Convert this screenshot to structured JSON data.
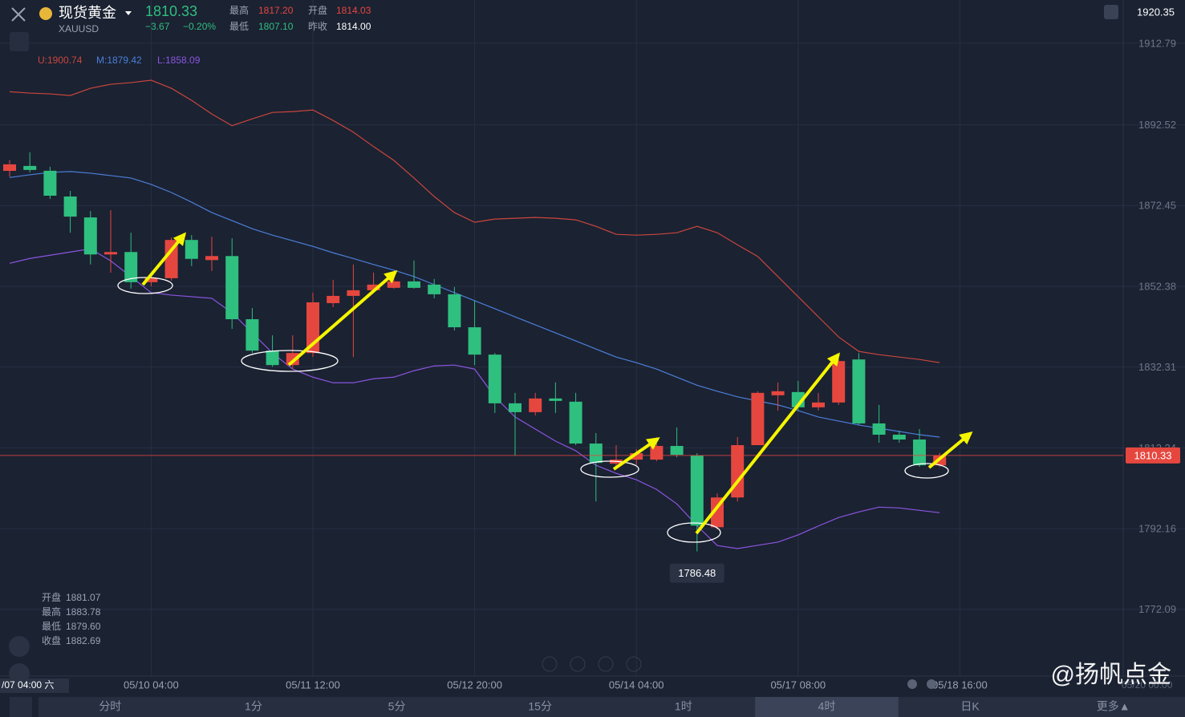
{
  "header": {
    "name": "现货黄金",
    "symbol": "XAUUSD",
    "price": "1810.33",
    "change": "−3.67",
    "change_pct": "−0.20%",
    "stats": [
      {
        "label": "最高",
        "value": "1817.20"
      },
      {
        "label": "开盘",
        "value": "1814.03"
      },
      {
        "label": "最低",
        "value": "1807.10"
      },
      {
        "label": "昨收",
        "value": "1814.00"
      }
    ]
  },
  "ohlc_info": [
    {
      "label": "开盘",
      "value": "1881.07"
    },
    {
      "label": "最高",
      "value": "1883.78"
    },
    {
      "label": "最低",
      "value": "1879.60"
    },
    {
      "label": "收盘",
      "value": "1882.69"
    }
  ],
  "crosshair_time": "/07 04:00 六",
  "faded_label": "05/20 00:00",
  "tabs": [
    "分时",
    "1分",
    "5分",
    "15分",
    "1时",
    "4时",
    "日K",
    "更多▲"
  ],
  "selected_tab": 5,
  "watermark": "@扬帆点金",
  "chart_data": {
    "type": "candlestick",
    "categories": [
      null,
      null,
      null,
      null,
      null,
      null,
      null,
      "05/10 04:00",
      null,
      null,
      null,
      null,
      null,
      null,
      null,
      "05/11 12:00",
      null,
      null,
      null,
      null,
      null,
      null,
      null,
      "05/12 20:00",
      null,
      null,
      null,
      null,
      null,
      null,
      null,
      "05/14 04:00",
      null,
      null,
      null,
      null,
      null,
      null,
      null,
      "05/17 08:00",
      null,
      null,
      null,
      null,
      null,
      null,
      null,
      "05/18 16:00"
    ],
    "open": [
      1881.07,
      1882.3,
      1881.1,
      1874.7,
      1869.5,
      1860.3,
      1860.9,
      1853.4,
      1854.4,
      1863.9,
      1858.9,
      1859.9,
      1844.2,
      1836.4,
      1832.8,
      1835.8,
      1848.2,
      1850.0,
      1851.4,
      1852.0,
      1853.6,
      1852.8,
      1850.4,
      1842.2,
      1835.4,
      1823.3,
      1821.1,
      1824.5,
      1823.7,
      1813.3,
      1808.3,
      1809.3,
      1809.3,
      1812.7,
      1810.3,
      1792.5,
      1799.9,
      1812.9,
      1825.3,
      1826.1,
      1822.3,
      1823.5,
      1834.2,
      1818.3,
      1815.5,
      1814.3,
      1807.9,
      null
    ],
    "high": [
      1883.78,
      1885.7,
      1882.1,
      1876.1,
      1871.1,
      1871.3,
      1865.7,
      1855.8,
      1864.5,
      1865.1,
      1864.7,
      1864.3,
      1847.0,
      1840.2,
      1840.2,
      1850.8,
      1854.0,
      1857.8,
      1855.8,
      1855.8,
      1858.8,
      1854.2,
      1852.2,
      1848.8,
      1835.8,
      1825.9,
      1825.9,
      1828.5,
      1825.9,
      1815.9,
      1812.9,
      1811.9,
      1813.3,
      1817.3,
      1810.9,
      1800.9,
      1814.9,
      1826.3,
      1828.5,
      1828.9,
      1825.9,
      1834.2,
      1835.8,
      1822.9,
      1816.5,
      1816.9,
      1811.0,
      null
    ],
    "low": [
      1879.6,
      1880.7,
      1874.1,
      1865.7,
      1857.8,
      1855.8,
      1851.8,
      1852.4,
      1853.8,
      1857.4,
      1856.2,
      1841.8,
      1835.8,
      1832.4,
      1831.8,
      1834.8,
      1847.2,
      1834.8,
      1851.0,
      1851.8,
      1851.8,
      1849.4,
      1841.4,
      1832.8,
      1820.9,
      1810.3,
      1820.3,
      1820.9,
      1812.9,
      1798.9,
      1806.9,
      1807.9,
      1808.9,
      1809.9,
      1786.48,
      1791.9,
      1798.9,
      1812.9,
      1821.5,
      1821.5,
      1821.5,
      1822.9,
      1817.9,
      1813.5,
      1813.5,
      1807.5,
      1807.5,
      null
    ],
    "close": [
      1882.69,
      1881.3,
      1874.9,
      1869.7,
      1860.3,
      1860.9,
      1853.4,
      1854.4,
      1863.9,
      1859.2,
      1859.9,
      1844.2,
      1836.4,
      1832.8,
      1835.8,
      1848.4,
      1850.0,
      1851.4,
      1852.8,
      1853.6,
      1852.0,
      1850.4,
      1842.2,
      1835.4,
      1823.3,
      1821.1,
      1824.5,
      1823.9,
      1813.3,
      1808.5,
      1809.3,
      1810.9,
      1812.7,
      1810.5,
      1792.9,
      1799.9,
      1812.9,
      1825.9,
      1826.3,
      1822.3,
      1823.5,
      1833.8,
      1818.3,
      1815.5,
      1814.3,
      1807.9,
      1810.33,
      null
    ],
    "up_color": "#e5473f",
    "down_color": "#2fbf7f",
    "bands": [
      {
        "color": "#c9463d",
        "values": [
          1900.74,
          1900.4,
          1900.2,
          1899.8,
          1901.6,
          1902.6,
          1903.0,
          1903.6,
          1901.6,
          1898.6,
          1895.2,
          1892.3,
          1894.0,
          1895.6,
          1895.8,
          1896.2,
          1893.6,
          1890.7,
          1887.1,
          1883.7,
          1879.3,
          1874.7,
          1870.7,
          1868.3,
          1869.1,
          1869.3,
          1869.5,
          1869.3,
          1868.9,
          1867.3,
          1865.3,
          1865.1,
          1865.3,
          1865.7,
          1867.3,
          1865.7,
          1862.7,
          1859.8,
          1854.8,
          1849.8,
          1844.8,
          1839.8,
          1836.2,
          1835.4,
          1834.8,
          1834.2,
          1833.4,
          null
        ]
      },
      {
        "color": "#4b7fd9",
        "values": [
          1879.42,
          1880.1,
          1880.7,
          1880.9,
          1880.5,
          1879.9,
          1879.3,
          1877.7,
          1875.7,
          1873.3,
          1870.7,
          1868.7,
          1866.7,
          1865.1,
          1863.7,
          1862.3,
          1860.7,
          1859.3,
          1857.8,
          1856.4,
          1854.8,
          1852.8,
          1850.8,
          1848.8,
          1846.8,
          1844.8,
          1842.8,
          1840.8,
          1838.8,
          1836.8,
          1834.8,
          1833.4,
          1831.8,
          1829.8,
          1827.8,
          1826.3,
          1824.9,
          1823.9,
          1822.9,
          1821.5,
          1819.9,
          1818.9,
          1817.9,
          1817.1,
          1816.3,
          1815.5,
          1814.9,
          null
        ]
      },
      {
        "color": "#8b55e0",
        "values": [
          1858.09,
          1859.3,
          1860.1,
          1860.9,
          1861.7,
          1858.7,
          1854.8,
          1850.8,
          1850.2,
          1849.8,
          1849.4,
          1845.8,
          1840.8,
          1835.8,
          1831.8,
          1829.8,
          1828.4,
          1828.4,
          1829.4,
          1829.8,
          1831.4,
          1832.6,
          1832.8,
          1831.8,
          1824.9,
          1819.9,
          1816.9,
          1813.9,
          1811.5,
          1807.9,
          1805.9,
          1804.3,
          1801.9,
          1798.3,
          1792.9,
          1787.96,
          1787.2,
          1788.0,
          1788.8,
          1790.6,
          1792.8,
          1794.9,
          1796.3,
          1797.5,
          1797.3,
          1796.7,
          1796.1,
          null
        ]
      }
    ],
    "legend_labels": [
      "U:1900.74",
      "M:1879.42",
      "L:1858.09"
    ],
    "last_price": 1810.33,
    "last_color": "#e5473f",
    "ylim": [
      1755.5,
      1920.35
    ],
    "yticks": [
      1912.79,
      1892.52,
      1872.45,
      1852.38,
      1832.31,
      1812.24,
      1792.16,
      1772.09
    ],
    "grid": true
  }
}
